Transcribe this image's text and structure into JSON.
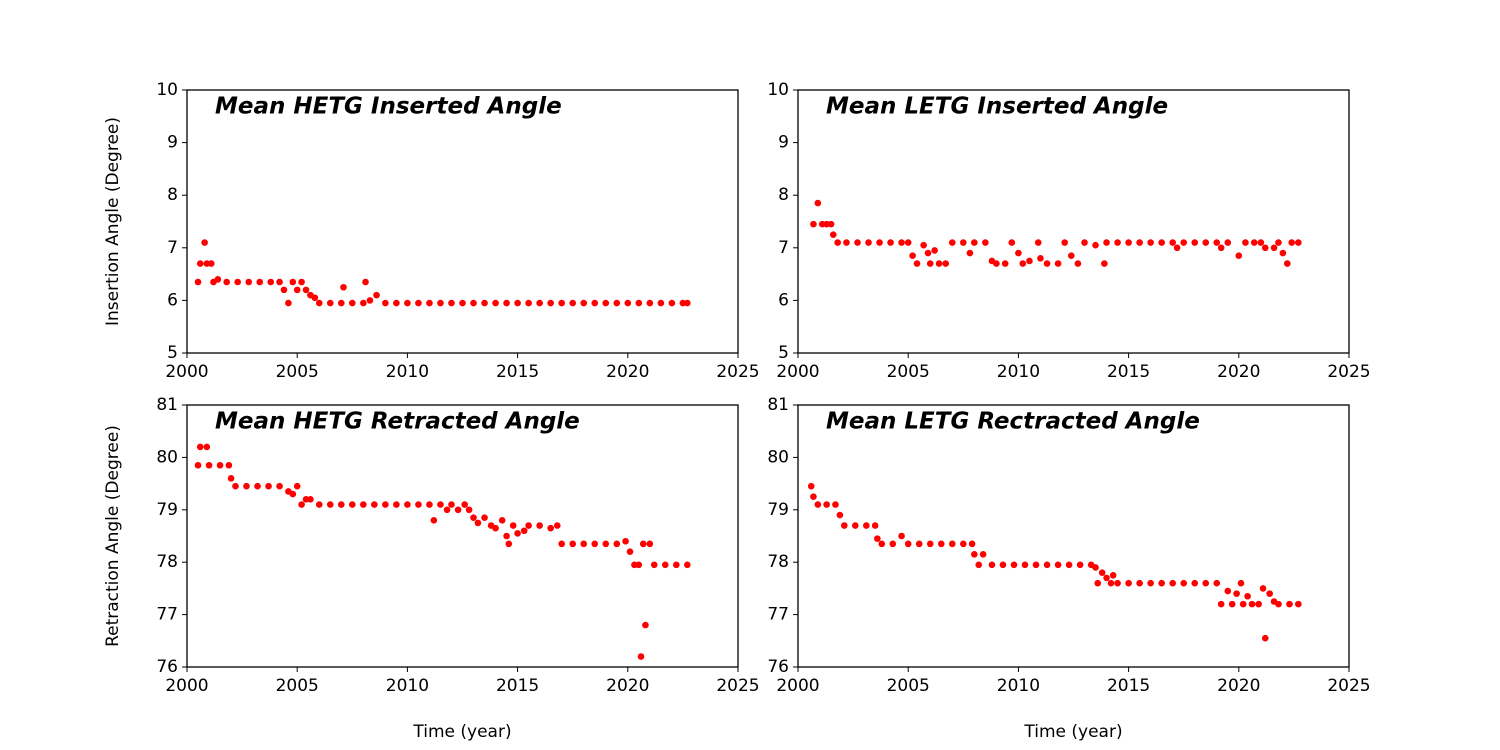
{
  "chart_data": [
    {
      "type": "scatter",
      "title": "Mean HETG Inserted Angle",
      "ylabel": "Insertion Angle (Degree)",
      "color": "#ff0000",
      "xlim": [
        2000,
        2025
      ],
      "ylim": [
        5,
        10
      ],
      "xticks": [
        2000,
        2005,
        2010,
        2015,
        2020,
        2025
      ],
      "yticks": [
        5,
        6,
        7,
        8,
        9,
        10
      ],
      "x": [
        2000.5,
        2000.6,
        2000.8,
        2000.9,
        2001.1,
        2001.2,
        2001.4,
        2001.8,
        2002.3,
        2002.8,
        2003.3,
        2003.8,
        2004.2,
        2004.4,
        2004.6,
        2004.8,
        2005.0,
        2005.2,
        2005.4,
        2005.6,
        2005.8,
        2006.0,
        2006.5,
        2007.0,
        2007.1,
        2007.5,
        2008.0,
        2008.1,
        2008.3,
        2008.6,
        2009.0,
        2009.5,
        2010.0,
        2010.5,
        2011.0,
        2011.5,
        2012.0,
        2012.5,
        2013.0,
        2013.5,
        2014.0,
        2014.5,
        2015.0,
        2015.5,
        2016.0,
        2016.5,
        2017.0,
        2017.5,
        2018.0,
        2018.5,
        2019.0,
        2019.5,
        2020.0,
        2020.5,
        2021.0,
        2021.5,
        2022.0,
        2022.5,
        2022.7
      ],
      "values": [
        6.35,
        6.7,
        7.1,
        6.7,
        6.7,
        6.35,
        6.4,
        6.35,
        6.35,
        6.35,
        6.35,
        6.35,
        6.35,
        6.2,
        5.95,
        6.35,
        6.2,
        6.35,
        6.2,
        6.1,
        6.05,
        5.95,
        5.95,
        5.95,
        6.25,
        5.95,
        5.95,
        6.35,
        6.0,
        6.1,
        5.95,
        5.95,
        5.95,
        5.95,
        5.95,
        5.95,
        5.95,
        5.95,
        5.95,
        5.95,
        5.95,
        5.95,
        5.95,
        5.95,
        5.95,
        5.95,
        5.95,
        5.95,
        5.95,
        5.95,
        5.95,
        5.95,
        5.95,
        5.95,
        5.95,
        5.95,
        5.95,
        5.95,
        5.95
      ]
    },
    {
      "type": "scatter",
      "title": "Mean LETG Inserted Angle",
      "color": "#ff0000",
      "xlim": [
        2000,
        2025
      ],
      "ylim": [
        5,
        10
      ],
      "xticks": [
        2000,
        2005,
        2010,
        2015,
        2020,
        2025
      ],
      "yticks": [
        5,
        6,
        7,
        8,
        9,
        10
      ],
      "x": [
        2000.7,
        2000.9,
        2001.1,
        2001.3,
        2001.5,
        2001.6,
        2001.8,
        2002.2,
        2002.7,
        2003.2,
        2003.7,
        2004.2,
        2004.7,
        2005.0,
        2005.2,
        2005.4,
        2005.7,
        2005.9,
        2006.0,
        2006.2,
        2006.4,
        2006.7,
        2007.0,
        2007.5,
        2007.8,
        2008.0,
        2008.5,
        2008.8,
        2009.0,
        2009.4,
        2009.7,
        2010.0,
        2010.2,
        2010.5,
        2010.9,
        2011.0,
        2011.3,
        2011.8,
        2012.1,
        2012.4,
        2012.7,
        2013.0,
        2013.5,
        2013.9,
        2014.0,
        2014.5,
        2015.0,
        2015.5,
        2016.0,
        2016.5,
        2017.0,
        2017.2,
        2017.5,
        2018.0,
        2018.5,
        2019.0,
        2019.2,
        2019.5,
        2020.0,
        2020.3,
        2020.7,
        2021.0,
        2021.2,
        2021.6,
        2021.8,
        2022.0,
        2022.2,
        2022.4,
        2022.7
      ],
      "values": [
        7.45,
        7.85,
        7.45,
        7.45,
        7.45,
        7.25,
        7.1,
        7.1,
        7.1,
        7.1,
        7.1,
        7.1,
        7.1,
        7.1,
        6.85,
        6.7,
        7.05,
        6.9,
        6.7,
        6.95,
        6.7,
        6.7,
        7.1,
        7.1,
        6.9,
        7.1,
        7.1,
        6.75,
        6.7,
        6.7,
        7.1,
        6.9,
        6.7,
        6.75,
        7.1,
        6.8,
        6.7,
        6.7,
        7.1,
        6.85,
        6.7,
        7.1,
        7.05,
        6.7,
        7.1,
        7.1,
        7.1,
        7.1,
        7.1,
        7.1,
        7.1,
        7.0,
        7.1,
        7.1,
        7.1,
        7.1,
        7.0,
        7.1,
        6.85,
        7.1,
        7.1,
        7.1,
        7.0,
        7.0,
        7.1,
        6.9,
        6.7,
        7.1,
        7.1
      ]
    },
    {
      "type": "scatter",
      "title": "Mean HETG Retracted Angle",
      "ylabel": "Retraction Angle (Degree)",
      "xlabel": "Time (year)",
      "color": "#ff0000",
      "xlim": [
        2000,
        2025
      ],
      "ylim": [
        76,
        81
      ],
      "xticks": [
        2000,
        2005,
        2010,
        2015,
        2020,
        2025
      ],
      "yticks": [
        76,
        77,
        78,
        79,
        80,
        81
      ],
      "x": [
        2000.5,
        2000.6,
        2000.9,
        2001.0,
        2001.5,
        2001.9,
        2002.0,
        2002.2,
        2002.7,
        2003.2,
        2003.7,
        2004.2,
        2004.6,
        2004.8,
        2005.0,
        2005.2,
        2005.4,
        2005.6,
        2006.0,
        2006.5,
        2007.0,
        2007.5,
        2008.0,
        2008.5,
        2009.0,
        2009.5,
        2010.0,
        2010.5,
        2011.0,
        2011.2,
        2011.5,
        2011.8,
        2012.0,
        2012.3,
        2012.6,
        2012.8,
        2013.0,
        2013.2,
        2013.5,
        2013.8,
        2014.0,
        2014.3,
        2014.5,
        2014.6,
        2014.8,
        2015.0,
        2015.3,
        2015.5,
        2016.0,
        2016.5,
        2016.8,
        2017.0,
        2017.5,
        2018.0,
        2018.5,
        2019.0,
        2019.5,
        2019.9,
        2020.1,
        2020.3,
        2020.5,
        2020.6,
        2020.7,
        2020.8,
        2021.0,
        2021.2,
        2021.7,
        2022.2,
        2022.7
      ],
      "values": [
        79.85,
        80.2,
        80.2,
        79.85,
        79.85,
        79.85,
        79.6,
        79.45,
        79.45,
        79.45,
        79.45,
        79.45,
        79.35,
        79.3,
        79.45,
        79.1,
        79.2,
        79.2,
        79.1,
        79.1,
        79.1,
        79.1,
        79.1,
        79.1,
        79.1,
        79.1,
        79.1,
        79.1,
        79.1,
        78.8,
        79.1,
        79.0,
        79.1,
        79.0,
        79.1,
        79.0,
        78.85,
        78.75,
        78.85,
        78.7,
        78.65,
        78.8,
        78.5,
        78.35,
        78.7,
        78.55,
        78.6,
        78.7,
        78.7,
        78.65,
        78.7,
        78.35,
        78.35,
        78.35,
        78.35,
        78.35,
        78.35,
        78.4,
        78.2,
        77.95,
        77.95,
        76.2,
        78.35,
        76.8,
        78.35,
        77.95,
        77.95,
        77.95,
        77.95
      ]
    },
    {
      "type": "scatter",
      "title": "Mean LETG Rectracted Angle",
      "xlabel": "Time (year)",
      "color": "#ff0000",
      "xlim": [
        2000,
        2025
      ],
      "ylim": [
        76,
        81
      ],
      "xticks": [
        2000,
        2005,
        2010,
        2015,
        2020,
        2025
      ],
      "yticks": [
        76,
        77,
        78,
        79,
        80,
        81
      ],
      "x": [
        2000.6,
        2000.7,
        2000.9,
        2001.3,
        2001.7,
        2001.9,
        2002.1,
        2002.6,
        2003.1,
        2003.5,
        2003.6,
        2003.8,
        2004.3,
        2004.7,
        2005.0,
        2005.5,
        2006.0,
        2006.5,
        2007.0,
        2007.5,
        2007.9,
        2008.0,
        2008.2,
        2008.4,
        2008.8,
        2009.3,
        2009.8,
        2010.3,
        2010.8,
        2011.3,
        2011.8,
        2012.3,
        2012.8,
        2013.3,
        2013.5,
        2013.6,
        2013.8,
        2014.0,
        2014.2,
        2014.3,
        2014.5,
        2015.0,
        2015.5,
        2016.0,
        2016.5,
        2017.0,
        2017.5,
        2018.0,
        2018.5,
        2019.0,
        2019.2,
        2019.5,
        2019.7,
        2019.9,
        2020.1,
        2020.2,
        2020.4,
        2020.6,
        2020.9,
        2021.1,
        2021.2,
        2021.4,
        2021.6,
        2021.8,
        2022.3,
        2022.7
      ],
      "values": [
        79.45,
        79.25,
        79.1,
        79.1,
        79.1,
        78.9,
        78.7,
        78.7,
        78.7,
        78.7,
        78.45,
        78.35,
        78.35,
        78.5,
        78.35,
        78.35,
        78.35,
        78.35,
        78.35,
        78.35,
        78.35,
        78.15,
        77.95,
        78.15,
        77.95,
        77.95,
        77.95,
        77.95,
        77.95,
        77.95,
        77.95,
        77.95,
        77.95,
        77.95,
        77.9,
        77.6,
        77.8,
        77.7,
        77.6,
        77.75,
        77.6,
        77.6,
        77.6,
        77.6,
        77.6,
        77.6,
        77.6,
        77.6,
        77.6,
        77.6,
        77.2,
        77.45,
        77.2,
        77.4,
        77.6,
        77.2,
        77.35,
        77.2,
        77.2,
        77.5,
        76.55,
        77.4,
        77.25,
        77.2,
        77.2,
        77.2
      ]
    }
  ]
}
